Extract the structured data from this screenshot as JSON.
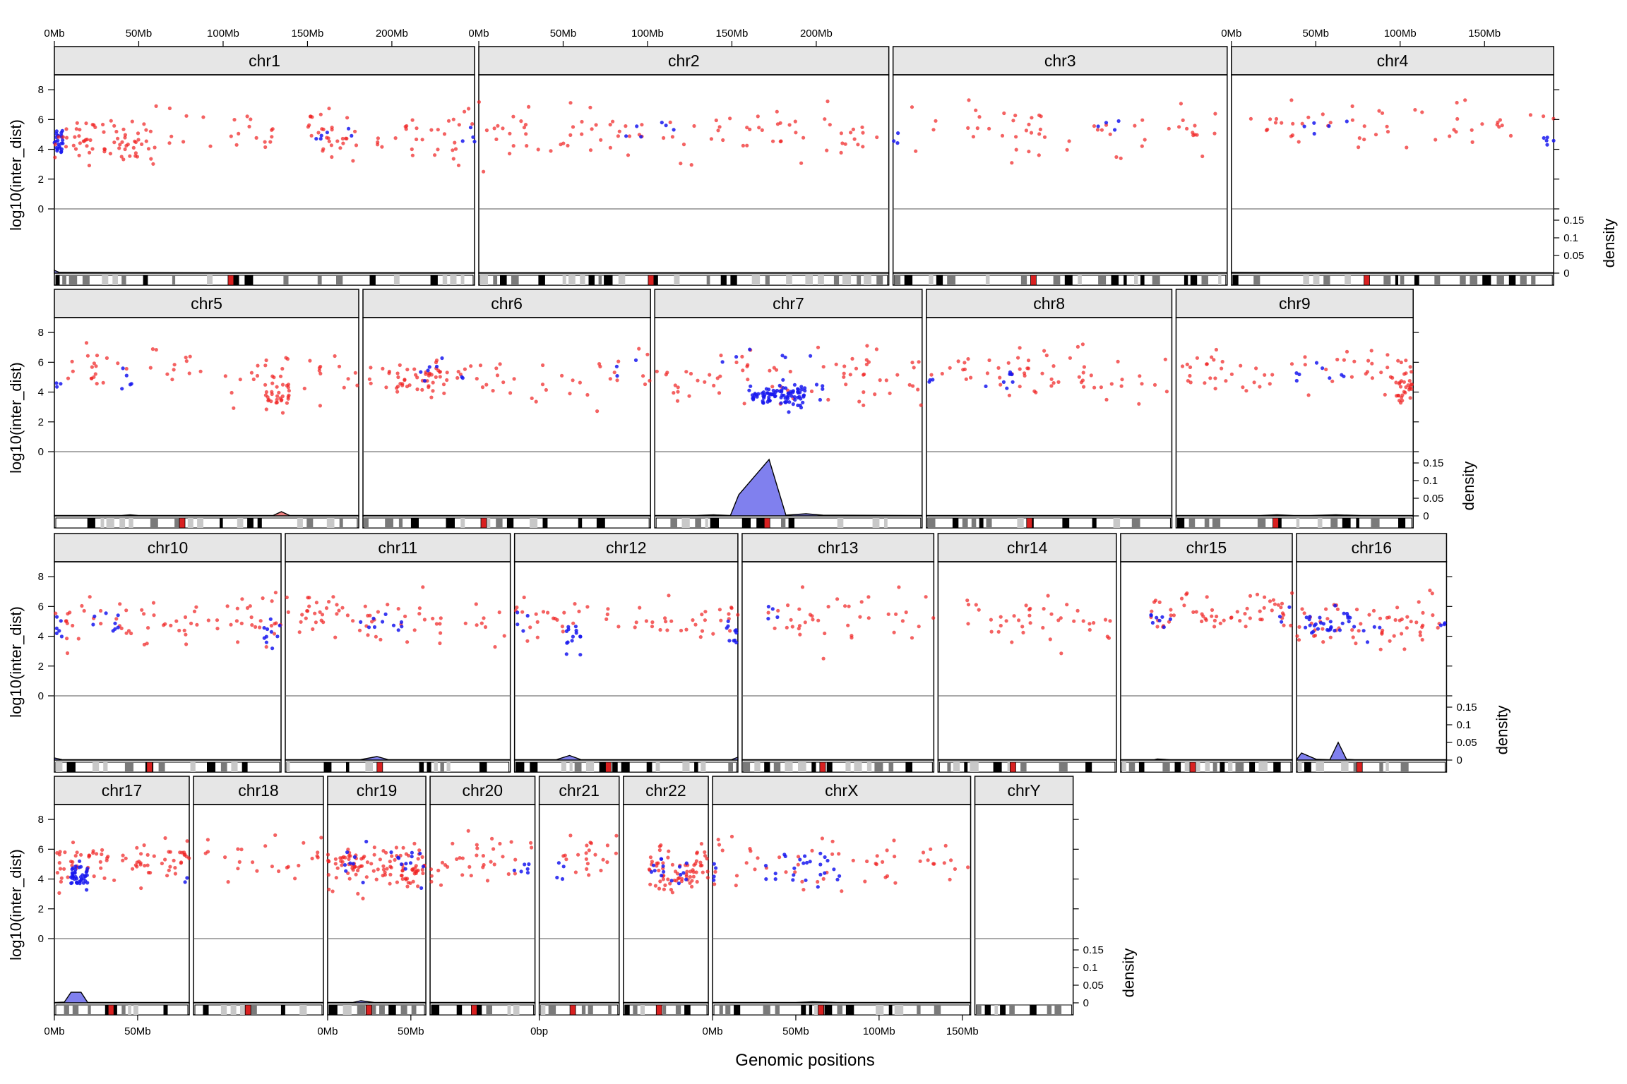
{
  "chart_data": {
    "type": "scatter",
    "xlabel": "Genomic positions",
    "ylabel": "log10(inter_dist)",
    "y2label": "density",
    "yticks": [
      "0",
      "2",
      "4",
      "6",
      "8"
    ],
    "density_ticks": [
      "0",
      "0.05",
      "0.1",
      "0.15"
    ],
    "ylim": [
      0,
      9
    ],
    "density_lim": [
      0,
      0.17
    ],
    "colors": {
      "point_red": "#f02020",
      "point_blue": "#1818ee",
      "density_fill": "#8080ee",
      "strip_bg": "#e6e6e6",
      "band_dark": "#000000",
      "band_mid": "#7a7a7a",
      "band_light": "#c8c8c8",
      "centromere": "#d92020"
    },
    "panels": [
      {
        "name": "chr1",
        "row": 0,
        "len": 249,
        "density": [
          [
            0,
            0.008
          ],
          [
            3,
            0.002
          ],
          [
            100,
            0.001
          ],
          [
            249,
            0.001
          ]
        ],
        "clusters": [
          [
            0,
            5,
            4.6,
            0.5,
            24,
            "blue"
          ],
          [
            0,
            60,
            4.6,
            0.7,
            70,
            "red"
          ],
          [
            60,
            130,
            5.2,
            0.8,
            22,
            "red"
          ],
          [
            150,
            180,
            5.0,
            0.8,
            30,
            "red"
          ],
          [
            155,
            178,
            4.8,
            0.4,
            6,
            "blue"
          ],
          [
            190,
            249,
            5.0,
            0.9,
            30,
            "red"
          ],
          [
            240,
            249,
            4.6,
            0.4,
            4,
            "blue"
          ]
        ],
        "axis_top": true,
        "ticks": [
          "0Mb",
          "50Mb",
          "100Mb",
          "150Mb",
          "200Mb"
        ]
      },
      {
        "name": "chr2",
        "row": 0,
        "len": 243,
        "density": [
          [
            0,
            0.001
          ],
          [
            243,
            0.001
          ]
        ],
        "clusters": [
          [
            0,
            243,
            5.0,
            0.8,
            90,
            "red"
          ],
          [
            80,
            130,
            5.2,
            0.4,
            6,
            "blue"
          ]
        ],
        "axis_top": true,
        "ticks": [
          "0Mb",
          "50Mb",
          "100Mb",
          "150Mb",
          "200Mb"
        ]
      },
      {
        "name": "chr3",
        "row": 0,
        "len": 198,
        "density": [
          [
            0,
            0.001
          ],
          [
            198,
            0.001
          ]
        ],
        "clusters": [
          [
            0,
            198,
            5.2,
            0.8,
            55,
            "red"
          ],
          [
            0,
            10,
            5.0,
            0.5,
            3,
            "blue"
          ],
          [
            120,
            140,
            5.5,
            0.3,
            4,
            "blue"
          ]
        ]
      },
      {
        "name": "chr4",
        "row": 0,
        "len": 191,
        "density": [
          [
            0,
            0.002
          ],
          [
            191,
            0.001
          ]
        ],
        "clusters": [
          [
            0,
            191,
            5.6,
            0.8,
            50,
            "red"
          ],
          [
            185,
            191,
            4.6,
            0.4,
            5,
            "blue"
          ],
          [
            40,
            75,
            5.6,
            0.5,
            5,
            "blue"
          ]
        ],
        "axis_top": true,
        "ticks": [
          "0Mb",
          "50Mb",
          "100Mb",
          "150Mb"
        ]
      },
      {
        "name": "chr5",
        "row": 1,
        "len": 181,
        "density": [
          [
            0,
            0.001
          ],
          [
            40,
            0.001
          ],
          [
            45,
            0.003
          ],
          [
            50,
            0.001
          ],
          [
            130,
            0.001
          ],
          [
            135,
            0.012
          ],
          [
            140,
            0.001
          ],
          [
            181,
            0.001
          ]
        ],
        "density_color": "#ee8080",
        "clusters": [
          [
            0,
            181,
            5.2,
            0.8,
            60,
            "red"
          ],
          [
            125,
            140,
            3.8,
            0.5,
            30,
            "red"
          ],
          [
            40,
            50,
            5.0,
            0.5,
            5,
            "blue"
          ],
          [
            0,
            4,
            4.5,
            0.5,
            3,
            "blue"
          ]
        ]
      },
      {
        "name": "chr6",
        "row": 1,
        "len": 171,
        "density": [
          [
            0,
            0.001
          ],
          [
            171,
            0.001
          ]
        ],
        "clusters": [
          [
            0,
            171,
            5.0,
            0.8,
            60,
            "red"
          ],
          [
            20,
            50,
            4.8,
            0.5,
            30,
            "red"
          ],
          [
            30,
            60,
            5.2,
            0.4,
            8,
            "blue"
          ],
          [
            150,
            165,
            5.4,
            0.4,
            3,
            "blue"
          ]
        ]
      },
      {
        "name": "chr7",
        "row": 1,
        "len": 159,
        "density": [
          [
            0,
            0.001
          ],
          [
            25,
            0.001
          ],
          [
            35,
            0.003
          ],
          [
            45,
            0.001
          ],
          [
            50,
            0.06
          ],
          [
            68,
            0.16
          ],
          [
            78,
            0.002
          ],
          [
            90,
            0.006
          ],
          [
            100,
            0.002
          ],
          [
            159,
            0.001
          ]
        ],
        "clusters": [
          [
            0,
            159,
            5.0,
            0.9,
            70,
            "red"
          ],
          [
            55,
            90,
            3.8,
            0.4,
            90,
            "blue"
          ],
          [
            40,
            100,
            6.3,
            0.3,
            6,
            "blue"
          ],
          [
            95,
            100,
            4.2,
            0.4,
            4,
            "blue"
          ]
        ]
      },
      {
        "name": "chr8",
        "row": 1,
        "len": 146,
        "density": [
          [
            0,
            0.001
          ],
          [
            146,
            0.001
          ]
        ],
        "clusters": [
          [
            0,
            146,
            5.3,
            0.8,
            60,
            "red"
          ],
          [
            35,
            55,
            4.8,
            0.4,
            8,
            "blue"
          ],
          [
            0,
            5,
            5.0,
            0.5,
            3,
            "blue"
          ]
        ]
      },
      {
        "name": "chr9",
        "row": 1,
        "len": 141,
        "density": [
          [
            0,
            0.001
          ],
          [
            50,
            0.001
          ],
          [
            60,
            0.003
          ],
          [
            70,
            0.001
          ],
          [
            80,
            0.001
          ],
          [
            95,
            0.003
          ],
          [
            110,
            0.001
          ],
          [
            141,
            0.001
          ]
        ],
        "clusters": [
          [
            0,
            141,
            5.3,
            0.8,
            60,
            "red"
          ],
          [
            130,
            141,
            4.4,
            0.5,
            25,
            "red"
          ],
          [
            60,
            100,
            5.4,
            0.4,
            8,
            "blue"
          ]
        ]
      },
      {
        "name": "chr10",
        "row": 2,
        "len": 136,
        "density": [
          [
            0,
            0.006
          ],
          [
            5,
            0.001
          ],
          [
            136,
            0.001
          ]
        ],
        "clusters": [
          [
            0,
            136,
            5.0,
            0.9,
            70,
            "red"
          ],
          [
            125,
            136,
            4.4,
            0.5,
            10,
            "blue"
          ],
          [
            0,
            5,
            4.5,
            0.5,
            6,
            "blue"
          ],
          [
            20,
            45,
            5.0,
            0.5,
            8,
            "blue"
          ]
        ]
      },
      {
        "name": "chr11",
        "row": 2,
        "len": 135,
        "density": [
          [
            0,
            0.001
          ],
          [
            45,
            0.001
          ],
          [
            55,
            0.01
          ],
          [
            62,
            0.001
          ],
          [
            135,
            0.001
          ]
        ],
        "clusters": [
          [
            0,
            135,
            5.3,
            0.8,
            65,
            "red"
          ],
          [
            45,
            70,
            4.9,
            0.4,
            10,
            "blue"
          ]
        ]
      },
      {
        "name": "chr12",
        "row": 2,
        "len": 134,
        "density": [
          [
            0,
            0.001
          ],
          [
            25,
            0.001
          ],
          [
            33,
            0.013
          ],
          [
            40,
            0.001
          ],
          [
            130,
            0.001
          ],
          [
            134,
            0.008
          ]
        ],
        "clusters": [
          [
            0,
            134,
            5.3,
            0.8,
            55,
            "red"
          ],
          [
            30,
            40,
            4.0,
            0.6,
            14,
            "blue"
          ],
          [
            125,
            134,
            4.4,
            0.5,
            10,
            "blue"
          ],
          [
            0,
            10,
            5.0,
            0.4,
            4,
            "blue"
          ]
        ]
      },
      {
        "name": "chr13",
        "row": 2,
        "len": 115,
        "density": [
          [
            0,
            0.001
          ],
          [
            115,
            0.001
          ]
        ],
        "clusters": [
          [
            15,
            115,
            5.3,
            0.8,
            40,
            "red"
          ],
          [
            15,
            25,
            5.4,
            0.5,
            4,
            "blue"
          ]
        ]
      },
      {
        "name": "chr14",
        "row": 2,
        "len": 107,
        "density": [
          [
            0,
            0.001
          ],
          [
            107,
            0.001
          ]
        ],
        "clusters": [
          [
            15,
            107,
            5.2,
            0.8,
            40,
            "red"
          ]
        ]
      },
      {
        "name": "chr15",
        "row": 2,
        "len": 103,
        "density": [
          [
            0,
            0.001
          ],
          [
            20,
            0.001
          ],
          [
            22,
            0.003
          ],
          [
            30,
            0.001
          ],
          [
            103,
            0.001
          ]
        ],
        "clusters": [
          [
            18,
            103,
            5.5,
            0.7,
            60,
            "red"
          ],
          [
            18,
            30,
            5.0,
            0.4,
            8,
            "blue"
          ],
          [
            95,
            103,
            5.4,
            0.4,
            3,
            "blue"
          ]
        ]
      },
      {
        "name": "chr16",
        "row": 2,
        "len": 90,
        "density": [
          [
            0,
            0.001
          ],
          [
            3,
            0.02
          ],
          [
            12,
            0.002
          ],
          [
            20,
            0.001
          ],
          [
            25,
            0.05
          ],
          [
            30,
            0.002
          ],
          [
            35,
            0.001
          ],
          [
            90,
            0.001
          ]
        ],
        "clusters": [
          [
            0,
            90,
            5.0,
            0.8,
            60,
            "red"
          ],
          [
            5,
            35,
            4.7,
            0.5,
            30,
            "blue"
          ],
          [
            40,
            50,
            4.6,
            0.4,
            4,
            "blue"
          ],
          [
            85,
            90,
            5.0,
            0.4,
            3,
            "blue"
          ]
        ],
        "axis_bottom_only": true
      },
      {
        "name": "chr17",
        "row": 3,
        "len": 81,
        "density": [
          [
            0,
            0.001
          ],
          [
            6,
            0.002
          ],
          [
            10,
            0.03
          ],
          [
            16,
            0.03
          ],
          [
            20,
            0.001
          ],
          [
            81,
            0.001
          ]
        ],
        "clusters": [
          [
            0,
            81,
            5.0,
            0.8,
            80,
            "red"
          ],
          [
            10,
            20,
            4.2,
            0.4,
            40,
            "blue"
          ],
          [
            78,
            81,
            4.0,
            0.4,
            2,
            "blue"
          ]
        ]
      },
      {
        "name": "chr18",
        "row": 3,
        "len": 78,
        "density": [
          [
            0,
            0.001
          ],
          [
            78,
            0.001
          ]
        ],
        "clusters": [
          [
            0,
            78,
            5.4,
            0.7,
            25,
            "red"
          ]
        ]
      },
      {
        "name": "chr19",
        "row": 3,
        "len": 59,
        "density": [
          [
            0,
            0.001
          ],
          [
            15,
            0.001
          ],
          [
            20,
            0.006
          ],
          [
            28,
            0.001
          ],
          [
            59,
            0.001
          ]
        ],
        "clusters": [
          [
            0,
            59,
            4.8,
            0.7,
            110,
            "red"
          ],
          [
            5,
            59,
            4.8,
            0.6,
            20,
            "blue"
          ]
        ]
      },
      {
        "name": "chr20",
        "row": 3,
        "len": 63,
        "density": [
          [
            0,
            0.001
          ],
          [
            63,
            0.001
          ]
        ],
        "clusters": [
          [
            0,
            63,
            5.0,
            0.8,
            35,
            "red"
          ],
          [
            50,
            60,
            4.7,
            0.4,
            6,
            "blue"
          ]
        ]
      },
      {
        "name": "chr21",
        "row": 3,
        "len": 48,
        "density": [
          [
            0,
            0.001
          ],
          [
            48,
            0.001
          ]
        ],
        "clusters": [
          [
            10,
            48,
            5.7,
            0.6,
            22,
            "red"
          ],
          [
            10,
            15,
            5.0,
            0.5,
            4,
            "blue"
          ]
        ]
      },
      {
        "name": "chr22",
        "row": 3,
        "len": 51,
        "density": [
          [
            0,
            0.001
          ],
          [
            51,
            0.001
          ]
        ],
        "clusters": [
          [
            15,
            51,
            4.6,
            0.8,
            70,
            "red"
          ],
          [
            15,
            40,
            4.6,
            0.5,
            15,
            "blue"
          ]
        ]
      },
      {
        "name": "chrX",
        "row": 3,
        "len": 155,
        "density": [
          [
            0,
            0.001
          ],
          [
            50,
            0.001
          ],
          [
            60,
            0.003
          ],
          [
            75,
            0.001
          ],
          [
            155,
            0.001
          ]
        ],
        "clusters": [
          [
            0,
            155,
            5.0,
            0.9,
            55,
            "red"
          ],
          [
            30,
            80,
            4.8,
            0.5,
            25,
            "blue"
          ],
          [
            0,
            4,
            4.5,
            0.4,
            4,
            "blue"
          ]
        ]
      },
      {
        "name": "chrY",
        "row": 3,
        "len": 59,
        "density": null,
        "clusters": []
      }
    ],
    "bottom_axis_labels": [
      {
        "panel": "chr17",
        "ticks": [
          "0Mb",
          "50Mb"
        ]
      },
      {
        "panel": "chr19",
        "ticks": [
          "0Mb",
          "50Mb"
        ]
      },
      {
        "panel": "chr21",
        "ticks": [
          "0bp"
        ]
      },
      {
        "panel": "chrX",
        "ticks": [
          "0Mb",
          "50Mb",
          "100Mb",
          "150Mb"
        ]
      }
    ]
  }
}
